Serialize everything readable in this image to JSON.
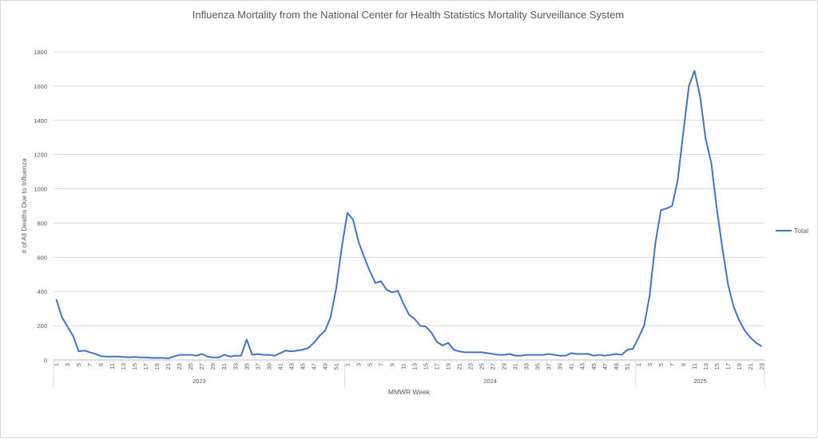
{
  "chart_data": {
    "type": "line",
    "title": "Influenza Mortality from the National Center for Health Statistics Mortality Surveillance System",
    "xlabel": "MMWR Week",
    "ylabel": "# of All Deaths Due to Influenza",
    "ylim": [
      0,
      1800
    ],
    "yticks": [
      0,
      200,
      400,
      600,
      800,
      1000,
      1200,
      1400,
      1600,
      1800
    ],
    "grid": true,
    "legend_position": "right",
    "line_color": "#4472c4",
    "years": [
      {
        "label": "2023",
        "weeks": 52
      },
      {
        "label": "2024",
        "weeks": 52
      },
      {
        "label": "2025",
        "weeks": 23
      }
    ],
    "series": [
      {
        "name": "Total",
        "values": [
          355,
          250,
          195,
          140,
          50,
          55,
          45,
          35,
          22,
          20,
          20,
          20,
          18,
          15,
          18,
          15,
          15,
          12,
          12,
          12,
          10,
          20,
          30,
          30,
          30,
          25,
          35,
          20,
          15,
          15,
          30,
          20,
          25,
          25,
          120,
          30,
          35,
          30,
          30,
          25,
          40,
          55,
          50,
          55,
          60,
          70,
          100,
          140,
          170,
          250,
          420,
          660,
          860,
          820,
          690,
          600,
          520,
          450,
          460,
          410,
          395,
          405,
          330,
          265,
          240,
          200,
          195,
          160,
          105,
          85,
          100,
          60,
          50,
          45,
          45,
          45,
          45,
          40,
          35,
          30,
          30,
          35,
          25,
          25,
          30,
          30,
          30,
          30,
          35,
          30,
          25,
          25,
          40,
          35,
          35,
          35,
          25,
          30,
          25,
          30,
          35,
          30,
          60,
          65,
          130,
          200,
          380,
          680,
          875,
          885,
          900,
          1050,
          1330,
          1600,
          1690,
          1540,
          1290,
          1150,
          880,
          650,
          440,
          310,
          230,
          170,
          130,
          100,
          80
        ]
      }
    ]
  }
}
